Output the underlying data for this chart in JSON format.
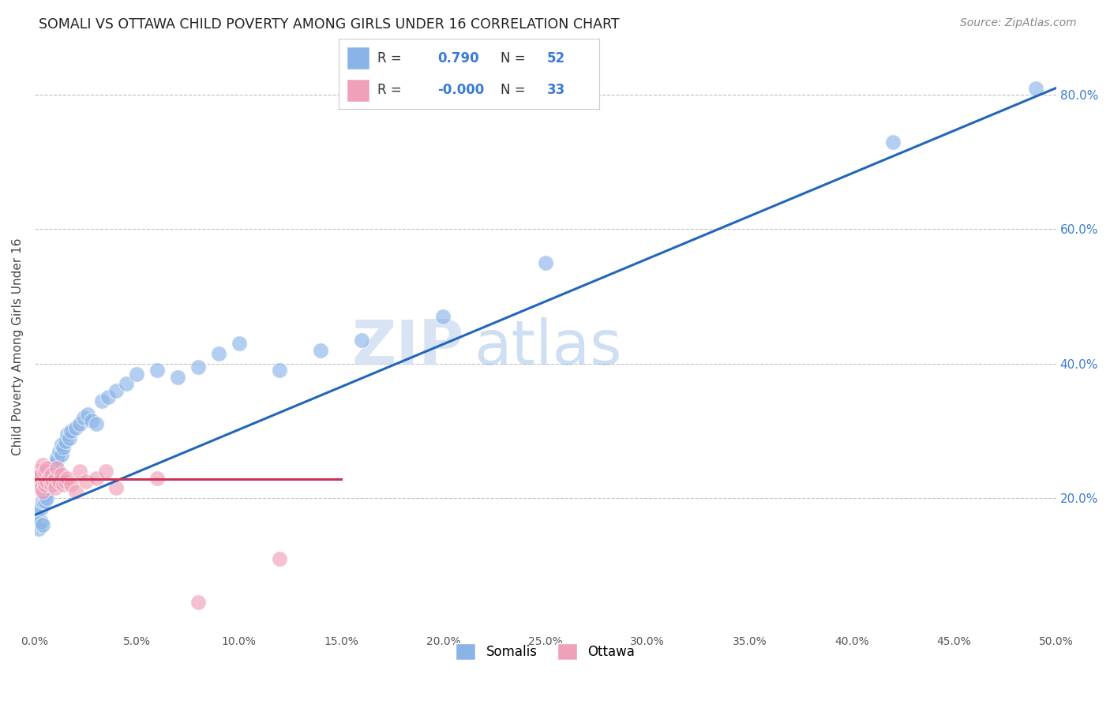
{
  "title": "SOMALI VS OTTAWA CHILD POVERTY AMONG GIRLS UNDER 16 CORRELATION CHART",
  "source": "Source: ZipAtlas.com",
  "ylabel": "Child Poverty Among Girls Under 16",
  "xlim": [
    0.0,
    0.5
  ],
  "ylim": [
    0.0,
    0.85
  ],
  "xticks": [
    0.0,
    0.05,
    0.1,
    0.15,
    0.2,
    0.25,
    0.3,
    0.35,
    0.4,
    0.45,
    0.5
  ],
  "yticks_right": [
    0.2,
    0.4,
    0.6,
    0.8
  ],
  "somali_R": 0.79,
  "somali_N": 52,
  "ottawa_R": -0.0,
  "ottawa_N": 33,
  "somali_color": "#8ab4e8",
  "ottawa_color": "#f0a0b8",
  "somali_line_color": "#2266bb",
  "ottawa_line_color": "#cc3355",
  "background_color": "#ffffff",
  "grid_color": "#bbbbbb",
  "watermark_zip": "ZIP",
  "watermark_atlas": "atlas",
  "somali_x": [
    0.001,
    0.002,
    0.003,
    0.003,
    0.004,
    0.004,
    0.005,
    0.005,
    0.005,
    0.006,
    0.006,
    0.007,
    0.007,
    0.008,
    0.008,
    0.009,
    0.009,
    0.01,
    0.01,
    0.011,
    0.011,
    0.012,
    0.013,
    0.013,
    0.014,
    0.015,
    0.016,
    0.017,
    0.018,
    0.02,
    0.022,
    0.024,
    0.026,
    0.028,
    0.03,
    0.033,
    0.036,
    0.04,
    0.045,
    0.05,
    0.06,
    0.07,
    0.08,
    0.09,
    0.1,
    0.12,
    0.14,
    0.16,
    0.2,
    0.25,
    0.42,
    0.49
  ],
  "somali_y": [
    0.175,
    0.155,
    0.165,
    0.185,
    0.16,
    0.195,
    0.195,
    0.205,
    0.22,
    0.2,
    0.215,
    0.22,
    0.23,
    0.225,
    0.235,
    0.22,
    0.235,
    0.24,
    0.25,
    0.255,
    0.26,
    0.27,
    0.265,
    0.28,
    0.275,
    0.285,
    0.295,
    0.29,
    0.3,
    0.305,
    0.31,
    0.32,
    0.325,
    0.315,
    0.31,
    0.345,
    0.35,
    0.36,
    0.37,
    0.385,
    0.39,
    0.38,
    0.395,
    0.415,
    0.43,
    0.39,
    0.42,
    0.435,
    0.47,
    0.55,
    0.73,
    0.81
  ],
  "ottawa_x": [
    0.001,
    0.002,
    0.002,
    0.003,
    0.003,
    0.004,
    0.004,
    0.005,
    0.005,
    0.006,
    0.006,
    0.007,
    0.008,
    0.008,
    0.009,
    0.01,
    0.01,
    0.011,
    0.012,
    0.013,
    0.014,
    0.015,
    0.016,
    0.018,
    0.02,
    0.022,
    0.025,
    0.03,
    0.035,
    0.04,
    0.06,
    0.08,
    0.12
  ],
  "ottawa_y": [
    0.23,
    0.24,
    0.22,
    0.235,
    0.215,
    0.25,
    0.21,
    0.24,
    0.22,
    0.245,
    0.225,
    0.23,
    0.22,
    0.235,
    0.225,
    0.23,
    0.215,
    0.245,
    0.225,
    0.235,
    0.22,
    0.225,
    0.23,
    0.22,
    0.21,
    0.24,
    0.225,
    0.23,
    0.24,
    0.215,
    0.23,
    0.045,
    0.11
  ],
  "somali_line_x": [
    0.0,
    0.5
  ],
  "somali_line_y": [
    0.175,
    0.81
  ],
  "ottawa_line_x": [
    0.0,
    0.15
  ],
  "ottawa_line_y": [
    0.228,
    0.228
  ]
}
